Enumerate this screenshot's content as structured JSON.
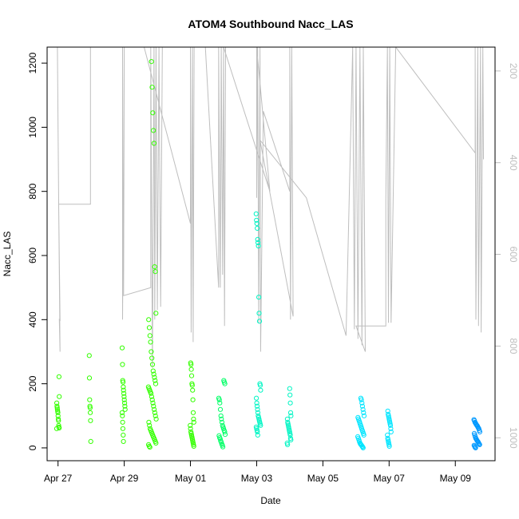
{
  "chart_data": {
    "type": "scatter",
    "title": "ATOM4 Southbound Nacc_LAS",
    "xlabel": "Date",
    "ylabel": "Nacc_LAS",
    "x_ticks": [
      {
        "day": 0,
        "label": "Apr 27"
      },
      {
        "day": 2,
        "label": "Apr 29"
      },
      {
        "day": 4,
        "label": "May 01"
      },
      {
        "day": 6,
        "label": "May 03"
      },
      {
        "day": 8,
        "label": "May 05"
      },
      {
        "day": 10,
        "label": "May 07"
      },
      {
        "day": 12,
        "label": "May 09"
      }
    ],
    "xlim_days": [
      -0.33,
      13.2
    ],
    "ylim": [
      -40,
      1250
    ],
    "y_ticks": [
      0,
      200,
      400,
      600,
      800,
      1000,
      1200
    ],
    "right_axis": {
      "label": "",
      "ticks": [
        200,
        400,
        600,
        800,
        1000
      ],
      "lim": [
        148,
        1050
      ],
      "inverted": true,
      "color": "#bebebe"
    },
    "colors": {
      "green": "#33ff00",
      "mint": "#00ff66",
      "aqua": "#00f5c4",
      "cyan": "#00e5ff",
      "blue": "#0099ff",
      "line": "#bebebe"
    },
    "clusters": [
      {
        "day": 0.0,
        "spread": 0.04,
        "color": "green",
        "points": [
          60,
          62,
          65,
          70,
          85,
          90,
          100,
          110,
          115,
          120,
          125,
          130,
          140,
          160,
          222
        ]
      },
      {
        "day": 0.97,
        "spread": 0.04,
        "color": "green",
        "points": [
          20,
          85,
          110,
          125,
          130,
          150,
          218,
          288
        ]
      },
      {
        "day": 1.98,
        "spread": 0.05,
        "color": "green",
        "points": [
          20,
          40,
          60,
          80,
          100,
          110,
          120,
          130,
          140,
          150,
          160,
          170,
          180,
          190,
          205,
          210,
          260,
          312
        ]
      },
      {
        "day": 2.85,
        "spread": 0.12,
        "color": "green",
        "points": [
          2,
          5,
          10,
          15,
          20,
          25,
          30,
          35,
          40,
          45,
          50,
          55,
          60,
          70,
          80,
          90,
          100,
          110,
          120,
          130,
          140,
          150,
          160,
          170,
          175,
          180,
          185,
          190,
          200,
          210,
          220,
          230,
          240,
          260,
          280,
          300,
          330,
          350,
          375,
          400,
          420,
          550,
          565,
          950,
          990,
          1045,
          1125,
          1205
        ]
      },
      {
        "day": 4.05,
        "spread": 0.06,
        "color": "green",
        "points": [
          5,
          10,
          15,
          20,
          25,
          30,
          35,
          40,
          45,
          50,
          60,
          70,
          80,
          90,
          110,
          150,
          180,
          195,
          200,
          225,
          245,
          260,
          265
        ]
      },
      {
        "day": 4.95,
        "spread": 0.1,
        "color": "mint",
        "points": [
          3,
          8,
          12,
          18,
          22,
          28,
          32,
          38,
          42,
          50,
          55,
          60,
          65,
          70,
          80,
          90,
          100,
          120,
          140,
          150,
          155,
          200,
          205,
          210
        ]
      },
      {
        "day": 6.05,
        "spread": 0.07,
        "color": "aqua",
        "points": [
          40,
          50,
          55,
          60,
          65,
          70,
          75,
          80,
          85,
          90,
          95,
          100,
          110,
          120,
          130,
          140,
          155,
          180,
          195,
          200,
          395,
          420,
          470,
          630,
          640,
          650,
          685,
          700,
          710,
          730
        ]
      },
      {
        "day": 6.98,
        "spread": 0.06,
        "color": "aqua",
        "points": [
          10,
          15,
          25,
          30,
          40,
          45,
          50,
          55,
          60,
          65,
          70,
          75,
          80,
          90,
          100,
          110,
          140,
          165,
          185
        ]
      },
      {
        "day": 9.15,
        "spread": 0.1,
        "color": "cyan",
        "points": [
          0,
          3,
          5,
          8,
          10,
          12,
          15,
          20,
          25,
          30,
          35,
          40,
          45,
          50,
          55,
          60,
          65,
          70,
          75,
          80,
          85,
          90,
          95,
          100,
          110,
          120,
          130,
          140,
          150,
          155
        ]
      },
      {
        "day": 10.0,
        "spread": 0.06,
        "color": "cyan",
        "points": [
          5,
          10,
          15,
          20,
          25,
          30,
          40,
          50,
          60,
          70,
          75,
          80,
          85,
          90,
          95,
          100,
          105,
          115
        ]
      },
      {
        "day": 12.65,
        "spread": 0.09,
        "color": "blue",
        "points": [
          0,
          2,
          5,
          8,
          10,
          12,
          15,
          18,
          20,
          22,
          25,
          28,
          30,
          35,
          40,
          45,
          50,
          55,
          60,
          62,
          65,
          68,
          70,
          72,
          75,
          78,
          80,
          85,
          88
        ]
      }
    ],
    "altitude_trace": [
      [
        -0.02,
        1250
      ],
      [
        0.02,
        760
      ],
      [
        0.06,
        300
      ],
      [
        0.04,
        400
      ],
      [
        0.06,
        398
      ],
      [
        0.02,
        760
      ],
      [
        0.98,
        760
      ],
      [
        0.98,
        1250
      ],
      [
        1.95,
        1250
      ],
      [
        1.95,
        400
      ],
      [
        2.0,
        1250
      ],
      [
        1.98,
        475
      ],
      [
        2.8,
        500
      ],
      [
        2.8,
        1250
      ],
      [
        2.85,
        250
      ],
      [
        2.9,
        1250
      ],
      [
        2.92,
        400
      ],
      [
        2.96,
        1250
      ],
      [
        3.0,
        430
      ],
      [
        3.05,
        1250
      ],
      [
        3.1,
        440
      ],
      [
        3.15,
        1250
      ],
      [
        2.6,
        1250
      ],
      [
        4.0,
        700
      ],
      [
        4.0,
        1250
      ],
      [
        4.02,
        360
      ],
      [
        4.06,
        1250
      ],
      [
        4.08,
        330
      ],
      [
        4.11,
        1250
      ],
      [
        4.45,
        1250
      ],
      [
        4.85,
        500
      ],
      [
        4.85,
        1250
      ],
      [
        4.9,
        500
      ],
      [
        4.93,
        1250
      ],
      [
        4.97,
        540
      ],
      [
        5.0,
        1250
      ],
      [
        5.03,
        380
      ],
      [
        5.06,
        1250
      ],
      [
        5.0,
        1250
      ],
      [
        6.4,
        800
      ],
      [
        6.0,
        1250
      ],
      [
        6.0,
        780
      ],
      [
        6.03,
        1250
      ],
      [
        6.06,
        390
      ],
      [
        6.1,
        1250
      ],
      [
        6.12,
        300
      ],
      [
        6.2,
        1050
      ],
      [
        7.0,
        800
      ],
      [
        7.0,
        1250
      ],
      [
        7.02,
        400
      ],
      [
        7.06,
        1250
      ],
      [
        7.1,
        410
      ],
      [
        6.1,
        960
      ],
      [
        7.5,
        780
      ],
      [
        8.7,
        350
      ],
      [
        8.9,
        1250
      ],
      [
        8.95,
        370
      ],
      [
        9.0,
        1250
      ],
      [
        9.06,
        340
      ],
      [
        9.12,
        1250
      ],
      [
        9.18,
        320
      ],
      [
        9.22,
        1250
      ],
      [
        9.28,
        300
      ],
      [
        9.0,
        380
      ],
      [
        9.9,
        380
      ],
      [
        9.9,
        770
      ],
      [
        9.95,
        1250
      ],
      [
        9.98,
        390
      ],
      [
        10.02,
        1250
      ],
      [
        10.06,
        390
      ],
      [
        10.2,
        1250
      ],
      [
        12.6,
        920
      ],
      [
        12.6,
        1250
      ],
      [
        12.62,
        400
      ],
      [
        12.68,
        1250
      ],
      [
        12.7,
        380
      ],
      [
        12.76,
        1250
      ],
      [
        12.78,
        360
      ],
      [
        12.83,
        1250
      ],
      [
        12.85,
        900
      ]
    ]
  }
}
